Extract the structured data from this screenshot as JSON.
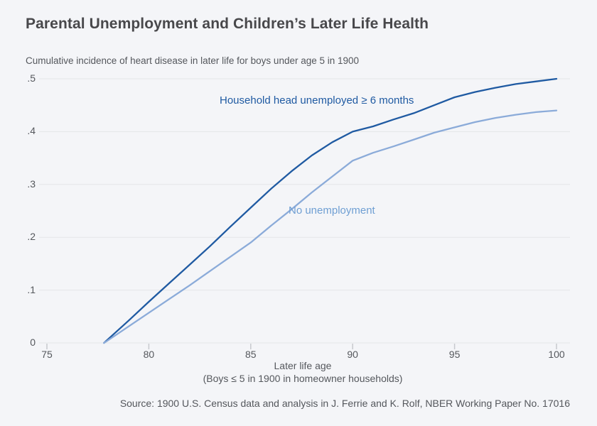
{
  "header": {
    "title": "Parental Unemployment and Children’s Later Life Health",
    "subtitle": "Cumulative incidence of heart disease in later life for boys under age 5 in 1900"
  },
  "chart_data": {
    "type": "line",
    "title": "Parental Unemployment and Children’s Later Life Health",
    "xlabel": "Later life age",
    "xlabel_note": "(Boys ≤ 5 in 1900 in homeowner households)",
    "ylabel": "Cumulative incidence of heart disease",
    "xlim": [
      75,
      100
    ],
    "ylim": [
      0,
      0.5
    ],
    "x_ticks": [
      75,
      80,
      85,
      90,
      95,
      100
    ],
    "y_ticks": [
      0,
      0.1,
      0.2,
      0.3,
      0.4,
      0.5
    ],
    "y_tick_labels": [
      "0",
      ".1",
      ".2",
      ".3",
      ".4",
      ".5"
    ],
    "grid": "horizontal",
    "legend_position": "inline-annotations",
    "x": [
      77.8,
      78,
      79,
      80,
      81,
      82,
      83,
      84,
      85,
      86,
      87,
      88,
      89,
      90,
      91,
      92,
      93,
      94,
      95,
      96,
      97,
      98,
      99,
      100
    ],
    "series": [
      {
        "name": "Household head unemployed ≥ 6 months",
        "color": "#1f5aa2",
        "values": [
          0,
          0.007,
          0.042,
          0.078,
          0.113,
          0.148,
          0.183,
          0.22,
          0.256,
          0.292,
          0.325,
          0.355,
          0.38,
          0.4,
          0.41,
          0.423,
          0.435,
          0.45,
          0.465,
          0.475,
          0.483,
          0.49,
          0.495,
          0.5
        ]
      },
      {
        "name": "No unemployment",
        "color": "#8babd9",
        "values": [
          0,
          0.005,
          0.031,
          0.057,
          0.083,
          0.109,
          0.136,
          0.163,
          0.19,
          0.222,
          0.253,
          0.285,
          0.315,
          0.345,
          0.36,
          0.372,
          0.385,
          0.398,
          0.408,
          0.418,
          0.426,
          0.432,
          0.437,
          0.44
        ]
      }
    ]
  },
  "footer": {
    "source": "Source: 1900 U.S. Census data and analysis in J. Ferrie and K. Rolf, NBER Working Paper No. 17016"
  },
  "colors": {
    "background": "#f4f5f8",
    "title_text": "#48484b",
    "gray_text": "#55585d",
    "gridline": "#e5e6e9",
    "tick_mark": "#c7c9ce",
    "series_dark": "#1f5aa2",
    "series_light": "#8babd9",
    "annotation_light_text": "#6f9fd3"
  }
}
